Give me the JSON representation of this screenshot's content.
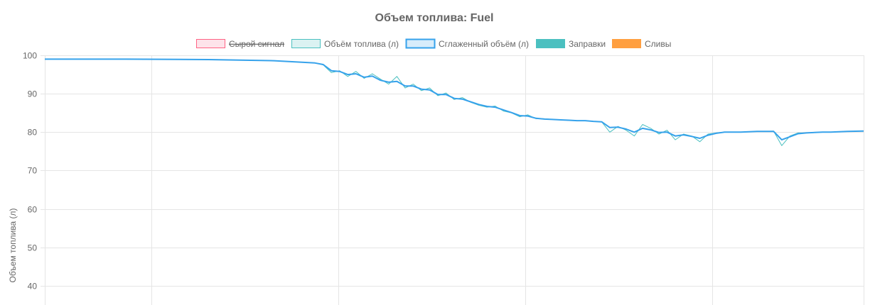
{
  "chart_data": {
    "type": "line",
    "title": "Объем топлива: Fuel",
    "ylabel": "Объем топлива (л)",
    "xlabel": "",
    "ylim": [
      35,
      100
    ],
    "yticks": [
      40,
      50,
      60,
      70,
      80,
      90,
      100
    ],
    "x_gridlines": 5,
    "grid": true,
    "legend_position": "top",
    "legend": [
      {
        "label": "Сырой сигнал",
        "color": "#ff6384",
        "fill": "#fde3ea",
        "hidden": true
      },
      {
        "label": "Объём топлива (л)",
        "color": "#4bc0c0",
        "fill": "#dbf2f2",
        "hidden": false
      },
      {
        "label": "Сглаженный объём (л)",
        "color": "#36a2eb",
        "fill": "#d7ecfb",
        "hidden": false
      },
      {
        "label": "Заправки",
        "color": "#4bc0c0",
        "fill": "#4bc0c0",
        "hidden": false
      },
      {
        "label": "Сливы",
        "color": "#ff9f40",
        "fill": "#ff9f40",
        "hidden": false
      }
    ],
    "series": [
      {
        "name": "Объём топлива (л)",
        "color": "#4bc0c0",
        "x": [
          0,
          10,
          20,
          28,
          33,
          34,
          35,
          36,
          37,
          38,
          39,
          40,
          41,
          42,
          43,
          44,
          45,
          46,
          47,
          48,
          49,
          50,
          51,
          52,
          53,
          54,
          55,
          56,
          57,
          58,
          59,
          60,
          61,
          62,
          63,
          64,
          65,
          66,
          67,
          68,
          69,
          70,
          71,
          72,
          73,
          74,
          75,
          76,
          77,
          78,
          79,
          80,
          81,
          82,
          83,
          84,
          85,
          86,
          87,
          88,
          89,
          90,
          91,
          92,
          93,
          94,
          95,
          96,
          97,
          98,
          100
        ],
        "values": [
          99.0,
          99.0,
          98.9,
          98.6,
          98.0,
          97.5,
          95.5,
          96.0,
          94.5,
          95.8,
          94.0,
          95.2,
          93.8,
          92.5,
          94.5,
          91.5,
          92.5,
          90.8,
          91.5,
          89.5,
          90.2,
          88.5,
          89.0,
          87.8,
          87.0,
          86.5,
          86.8,
          85.5,
          85.0,
          84.0,
          84.5,
          83.5,
          83.5,
          83.3,
          83.2,
          83.1,
          83.0,
          83.0,
          82.8,
          82.7,
          80.0,
          81.5,
          80.5,
          79.0,
          82.0,
          81.0,
          79.5,
          80.5,
          78.0,
          79.5,
          79.0,
          77.5,
          79.5,
          79.8,
          80.0,
          80.0,
          80.0,
          80.1,
          80.2,
          80.2,
          80.3,
          76.5,
          79.0,
          79.8,
          79.8,
          79.9,
          80.0,
          80.0,
          80.1,
          80.2,
          80.3
        ]
      },
      {
        "name": "Сглаженный объём (л)",
        "color": "#36a2eb",
        "x": [
          0,
          10,
          20,
          28,
          33,
          34,
          35,
          36,
          37,
          38,
          39,
          40,
          41,
          42,
          43,
          44,
          45,
          46,
          47,
          48,
          49,
          50,
          51,
          52,
          53,
          54,
          55,
          56,
          57,
          58,
          59,
          60,
          61,
          62,
          63,
          64,
          65,
          66,
          67,
          68,
          69,
          70,
          71,
          72,
          73,
          74,
          75,
          76,
          77,
          78,
          79,
          80,
          81,
          82,
          83,
          84,
          85,
          86,
          87,
          88,
          89,
          90,
          91,
          92,
          93,
          94,
          95,
          96,
          97,
          98,
          100
        ],
        "values": [
          99.0,
          99.0,
          98.9,
          98.6,
          98.0,
          97.6,
          96.0,
          95.8,
          95.0,
          95.2,
          94.3,
          94.6,
          93.5,
          93.0,
          93.2,
          92.0,
          92.0,
          91.2,
          91.0,
          89.8,
          89.8,
          88.8,
          88.6,
          87.9,
          87.2,
          86.7,
          86.5,
          85.8,
          85.1,
          84.3,
          84.2,
          83.6,
          83.4,
          83.3,
          83.2,
          83.1,
          83.0,
          83.0,
          82.8,
          82.7,
          81.2,
          81.3,
          80.8,
          80.0,
          81.0,
          80.6,
          79.9,
          80.0,
          79.0,
          79.3,
          78.9,
          78.4,
          79.2,
          79.7,
          80.0,
          80.0,
          80.0,
          80.1,
          80.2,
          80.2,
          80.2,
          78.0,
          78.8,
          79.6,
          79.8,
          79.9,
          80.0,
          80.0,
          80.1,
          80.2,
          80.3
        ]
      }
    ]
  }
}
